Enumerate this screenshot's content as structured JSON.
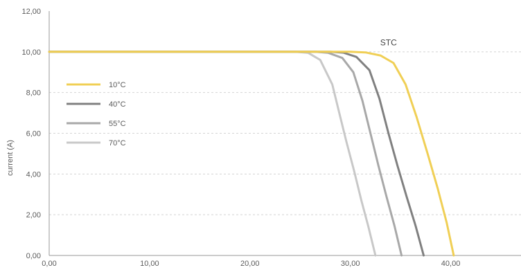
{
  "chart_data": {
    "type": "line",
    "title": "",
    "xlabel": "",
    "ylabel": "current (A)",
    "xlim": [
      0,
      47
    ],
    "ylim": [
      0,
      12
    ],
    "x_ticks": [
      "0,00",
      "10,00",
      "20,00",
      "30,00",
      "40,00"
    ],
    "x_tick_values": [
      0,
      10,
      20,
      30,
      40
    ],
    "y_ticks": [
      "0,00",
      "2,00",
      "4,00",
      "6,00",
      "8,00",
      "10,00",
      "12,00"
    ],
    "y_tick_values": [
      0,
      2,
      4,
      6,
      8,
      10,
      12
    ],
    "grid": "horizontal-dashed",
    "legend_position": "left",
    "annotation": {
      "text": "STC",
      "x": 33.8,
      "y": 10.25
    },
    "series": [
      {
        "name": "10°C",
        "color": "#f0cf55",
        "points": [
          [
            0,
            10
          ],
          [
            30,
            10
          ],
          [
            31.5,
            9.97
          ],
          [
            33,
            9.82
          ],
          [
            34.3,
            9.45
          ],
          [
            35.5,
            8.4
          ],
          [
            36.6,
            6.8
          ],
          [
            37.7,
            5.0
          ],
          [
            38.7,
            3.3
          ],
          [
            39.6,
            1.6
          ],
          [
            40.3,
            0
          ]
        ]
      },
      {
        "name": "40°C",
        "color": "#808080",
        "points": [
          [
            0,
            10
          ],
          [
            28,
            10
          ],
          [
            29.3,
            9.96
          ],
          [
            30.6,
            9.75
          ],
          [
            31.9,
            9.1
          ],
          [
            32.9,
            7.7
          ],
          [
            33.8,
            6.0
          ],
          [
            34.7,
            4.4
          ],
          [
            35.6,
            2.9
          ],
          [
            36.5,
            1.45
          ],
          [
            37.3,
            0
          ]
        ]
      },
      {
        "name": "55°C",
        "color": "#a8a8a8",
        "points": [
          [
            0,
            10
          ],
          [
            26.5,
            10
          ],
          [
            27.8,
            9.95
          ],
          [
            29.2,
            9.7
          ],
          [
            30.3,
            9.0
          ],
          [
            31.2,
            7.6
          ],
          [
            32,
            6.0
          ],
          [
            32.8,
            4.4
          ],
          [
            33.6,
            2.9
          ],
          [
            34.4,
            1.45
          ],
          [
            35.1,
            0
          ]
        ]
      },
      {
        "name": "70°C",
        "color": "#c8c8c8",
        "points": [
          [
            0,
            10
          ],
          [
            24.5,
            10
          ],
          [
            25.8,
            9.95
          ],
          [
            27,
            9.6
          ],
          [
            28.2,
            8.4
          ],
          [
            28.9,
            7.0
          ],
          [
            29.6,
            5.6
          ],
          [
            30.4,
            4.1
          ],
          [
            31.1,
            2.7
          ],
          [
            31.8,
            1.4
          ],
          [
            32.5,
            0
          ]
        ]
      }
    ]
  }
}
